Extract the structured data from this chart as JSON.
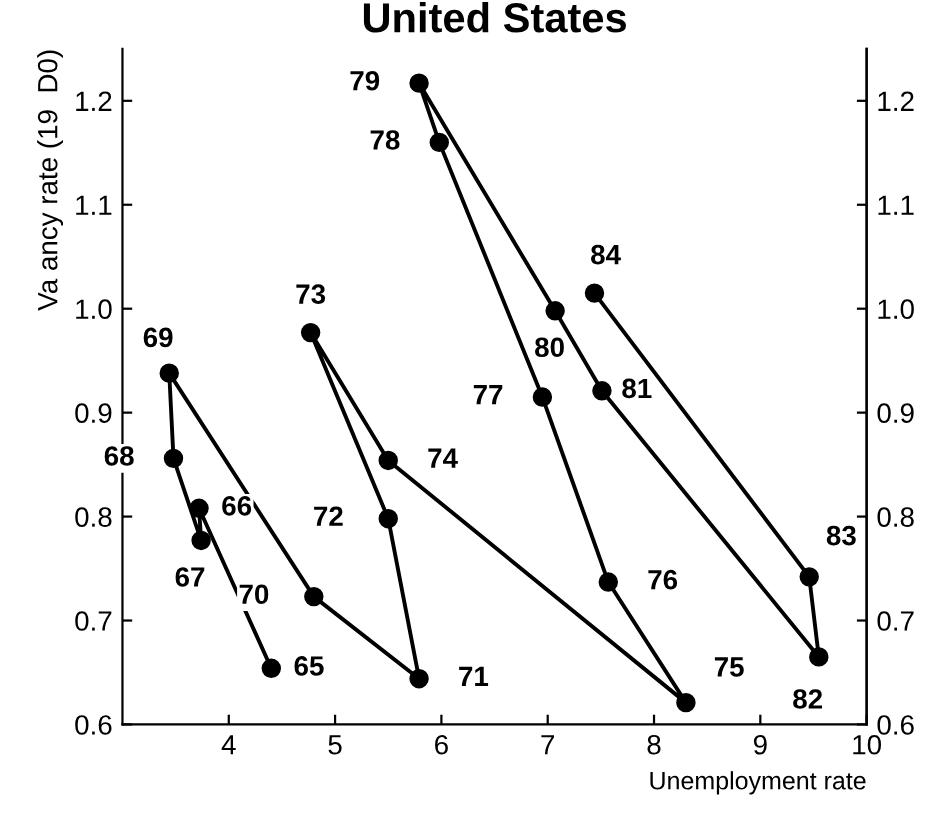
{
  "chart_data": {
    "type": "line",
    "title": "United States",
    "xlabel": "Unemployment rate",
    "ylabel": "Va ancy rate (19  D0)",
    "x": [
      4.4,
      3.72,
      3.74,
      3.48,
      3.44,
      4.8,
      5.79,
      5.5,
      4.77,
      5.5,
      8.3,
      7.57,
      6.95,
      5.98,
      5.79,
      7.07,
      7.51,
      9.55,
      9.46,
      7.44
    ],
    "series": [
      {
        "color": "#000000",
        "values": [
          0.654,
          0.808,
          0.777,
          0.856,
          0.938,
          0.723,
          0.644,
          0.798,
          0.977,
          0.854,
          0.621,
          0.737,
          0.915,
          1.16,
          1.217,
          0.998,
          0.921,
          0.665,
          0.742,
          1.015
        ]
      }
    ],
    "marker": "circle",
    "line_style": "solid",
    "grid": false,
    "legend": false,
    "xlim": [
      3.0,
      10
    ],
    "xticks": [
      4,
      5,
      6,
      7,
      8,
      9,
      10
    ],
    "ylim": [
      0.6,
      1.25
    ],
    "yticks": [
      0.6,
      0.7,
      0.8,
      0.9,
      {
        "value": 1,
        "label": "1.0"
      },
      1.1,
      1.2
    ],
    "y2lim": [
      0.6,
      1.25
    ],
    "y2ticks": [
      0.6,
      0.7,
      0.8,
      0.9,
      {
        "value": 1,
        "label": "1.0"
      },
      1.1,
      1.2
    ],
    "annotations": [
      {
        "text": "65",
        "x": 4.4,
        "y": 0.654
      },
      {
        "text": "66",
        "x": 3.72,
        "y": 0.808
      },
      {
        "text": "67",
        "x": 3.74,
        "y": 0.777
      },
      {
        "text": "68",
        "x": 3.48,
        "y": 0.856
      },
      {
        "text": "69",
        "x": 3.44,
        "y": 0.938
      },
      {
        "text": "70",
        "x": 4.8,
        "y": 0.723
      },
      {
        "text": "71",
        "x": 5.79,
        "y": 0.644
      },
      {
        "text": "72",
        "x": 5.5,
        "y": 0.798
      },
      {
        "text": "73",
        "x": 4.77,
        "y": 0.977
      },
      {
        "text": "74",
        "x": 5.5,
        "y": 0.854
      },
      {
        "text": "75",
        "x": 8.3,
        "y": 0.621
      },
      {
        "text": "76",
        "x": 7.57,
        "y": 0.737
      },
      {
        "text": "77",
        "x": 6.95,
        "y": 0.915
      },
      {
        "text": "78",
        "x": 5.98,
        "y": 1.16
      },
      {
        "text": "79",
        "x": 5.79,
        "y": 1.217
      },
      {
        "text": "80",
        "x": 7.07,
        "y": 0.998
      },
      {
        "text": "81",
        "x": 7.51,
        "y": 0.921
      },
      {
        "text": "82",
        "x": 9.55,
        "y": 0.665
      },
      {
        "text": "83",
        "x": 9.46,
        "y": 0.742
      },
      {
        "text": "84",
        "x": 7.44,
        "y": 1.015
      }
    ]
  }
}
